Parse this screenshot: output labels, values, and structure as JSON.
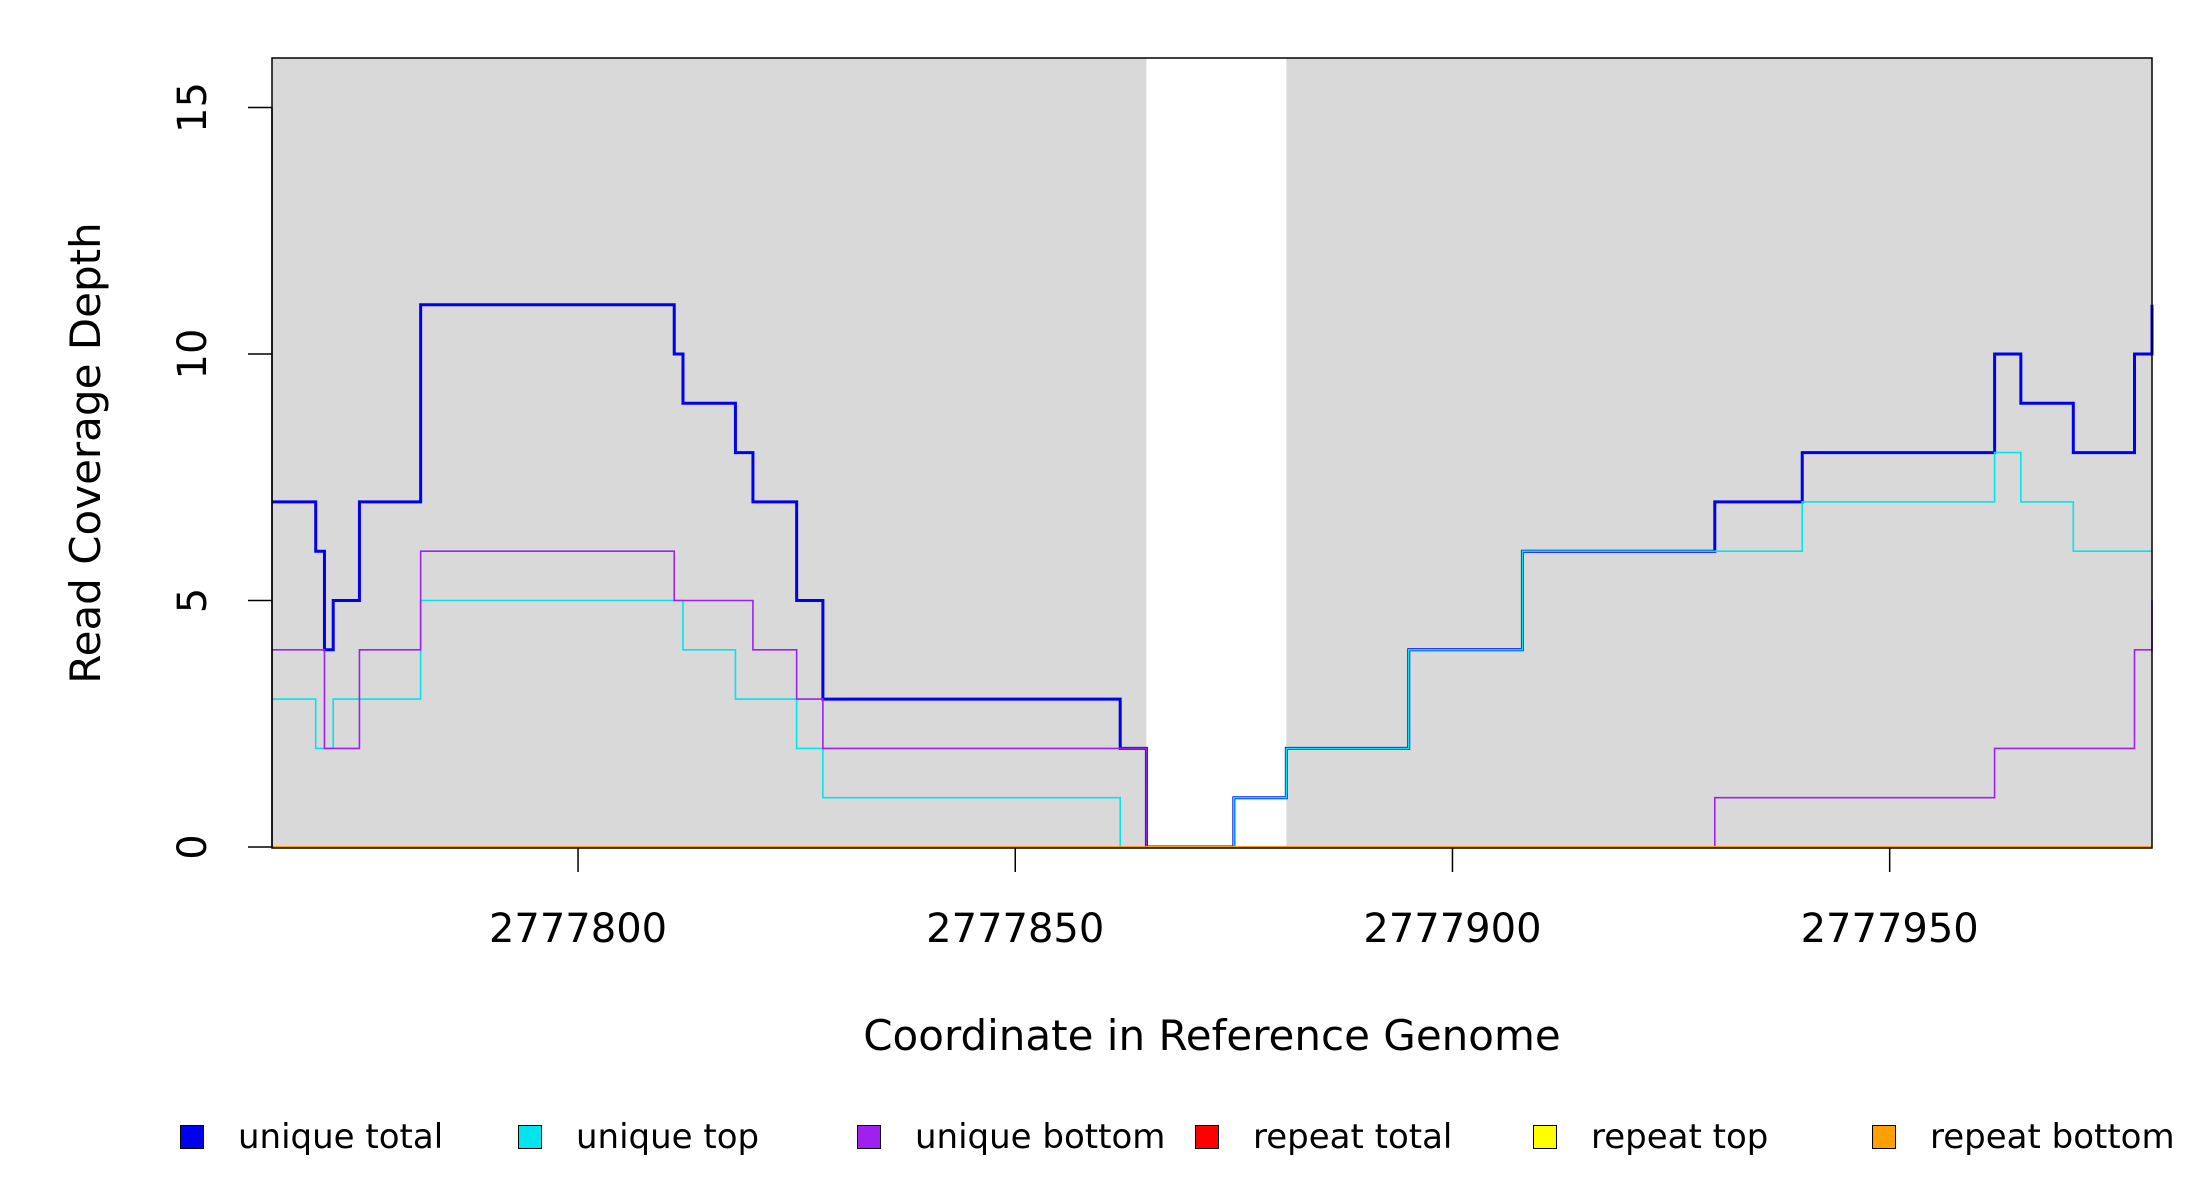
{
  "chart_data": {
    "type": "line",
    "step": true,
    "title": "",
    "xlabel": "Coordinate in Reference Genome",
    "ylabel": "Read Coverage Depth",
    "xlim": [
      2777765,
      2777980
    ],
    "ylim": [
      0,
      16
    ],
    "xticks": [
      2777800,
      2777850,
      2777900,
      2777950
    ],
    "xtick_labels": [
      "2777800",
      "2777850",
      "2777900",
      "2777950"
    ],
    "yticks": [
      0,
      5,
      10,
      15
    ],
    "ytick_labels": [
      "0",
      "5",
      "10",
      "15"
    ],
    "grid": false,
    "background": "#d9d9d9",
    "highlight_regions": [
      {
        "x0": 2777865,
        "x1": 2777881,
        "color": "#ffffff"
      }
    ],
    "legend_position": "bottom",
    "series": [
      {
        "name": "unique total",
        "color": "#0000ee",
        "width": 3,
        "x": [
          2777765,
          2777770,
          2777771,
          2777772,
          2777773,
          2777775,
          2777782,
          2777811,
          2777812,
          2777818,
          2777820,
          2777825,
          2777828,
          2777862,
          2777865,
          2777875,
          2777881,
          2777895,
          2777908,
          2777930,
          2777940,
          2777962,
          2777965,
          2777971,
          2777978,
          2777980
        ],
        "y": [
          7,
          6,
          4,
          5,
          5,
          7,
          11,
          10,
          9,
          8,
          7,
          5,
          3,
          2,
          0,
          1,
          2,
          4,
          6,
          7,
          8,
          10,
          9,
          8,
          10,
          11
        ]
      },
      {
        "name": "unique top",
        "color": "#00e5ee",
        "width": 1.6,
        "x": [
          2777765,
          2777770,
          2777772,
          2777775,
          2777782,
          2777812,
          2777818,
          2777825,
          2777828,
          2777862,
          2777865,
          2777875,
          2777881,
          2777895,
          2777908,
          2777930,
          2777940,
          2777962,
          2777965,
          2777971,
          2777980
        ],
        "y": [
          3,
          2,
          3,
          3,
          5,
          4,
          3,
          2,
          1,
          0,
          0,
          1,
          2,
          4,
          6,
          6,
          7,
          8,
          7,
          6,
          6
        ]
      },
      {
        "name": "unique bottom",
        "color": "#a020f0",
        "width": 1.6,
        "x": [
          2777765,
          2777771,
          2777775,
          2777782,
          2777811,
          2777820,
          2777825,
          2777828,
          2777865,
          2777930,
          2777962,
          2777978,
          2777980
        ],
        "y": [
          4,
          2,
          4,
          6,
          5,
          4,
          3,
          2,
          0,
          1,
          2,
          4,
          5
        ]
      },
      {
        "name": "repeat total",
        "color": "#ff0000",
        "width": 2,
        "x": [
          2777765,
          2777980
        ],
        "y": [
          0,
          0
        ]
      },
      {
        "name": "repeat top",
        "color": "#ffff00",
        "width": 2,
        "x": [
          2777765,
          2777980
        ],
        "y": [
          0,
          0
        ]
      },
      {
        "name": "repeat bottom",
        "color": "#ff9f00",
        "width": 2,
        "x": [
          2777765,
          2777980
        ],
        "y": [
          0,
          0
        ]
      }
    ]
  }
}
